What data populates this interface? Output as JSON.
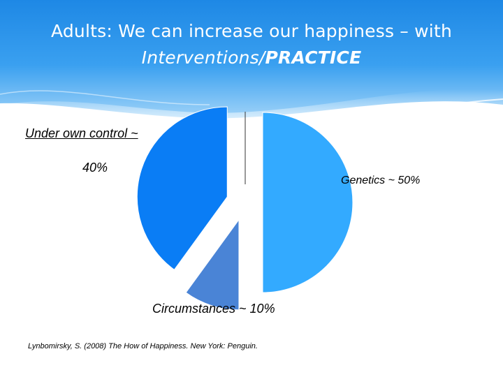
{
  "slide": {
    "title_line1": "Adults: We can increase our happiness – with",
    "title_line2_italic": "Interventions/",
    "title_line2_bold": "PRACTICE",
    "citation": "Lynbomirsky, S. (2008) The How of Happiness. New York: Penguin.",
    "colors": {
      "header_top": "#1e88e5",
      "header_bottom": "#9fd3f8"
    }
  },
  "chart_data": {
    "type": "pie",
    "slices": [
      {
        "label": "Genetics ~ 50%",
        "value": 50,
        "color": "#33aaff"
      },
      {
        "label": "Circumstances ~ 10%",
        "value": 10,
        "color": "#4a84d6"
      },
      {
        "label_line1": "Under own control ~",
        "label_line2": "40%",
        "value": 40,
        "color": "#0a7df5"
      }
    ]
  }
}
